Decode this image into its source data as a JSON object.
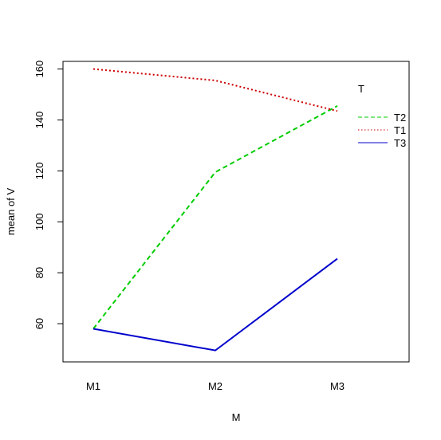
{
  "chart_data": {
    "type": "line",
    "xlabel": "M",
    "ylabel": "mean of  V",
    "categories": [
      "M1",
      "M2",
      "M3"
    ],
    "ylim": [
      45,
      163
    ],
    "yticks": [
      60,
      80,
      100,
      120,
      140,
      160
    ],
    "legend": {
      "title": "T",
      "position": "right"
    },
    "series": [
      {
        "name": "T2",
        "values": [
          58,
          119.5,
          145.5
        ],
        "color": "#00CD00",
        "dash": "6,4"
      },
      {
        "name": "T1",
        "values": [
          160,
          155.5,
          143.5
        ],
        "color": "#CD0000",
        "dash": "2,3"
      },
      {
        "name": "T3",
        "values": [
          58,
          49.5,
          85.5
        ],
        "color": "#0000CD",
        "dash": ""
      }
    ]
  }
}
